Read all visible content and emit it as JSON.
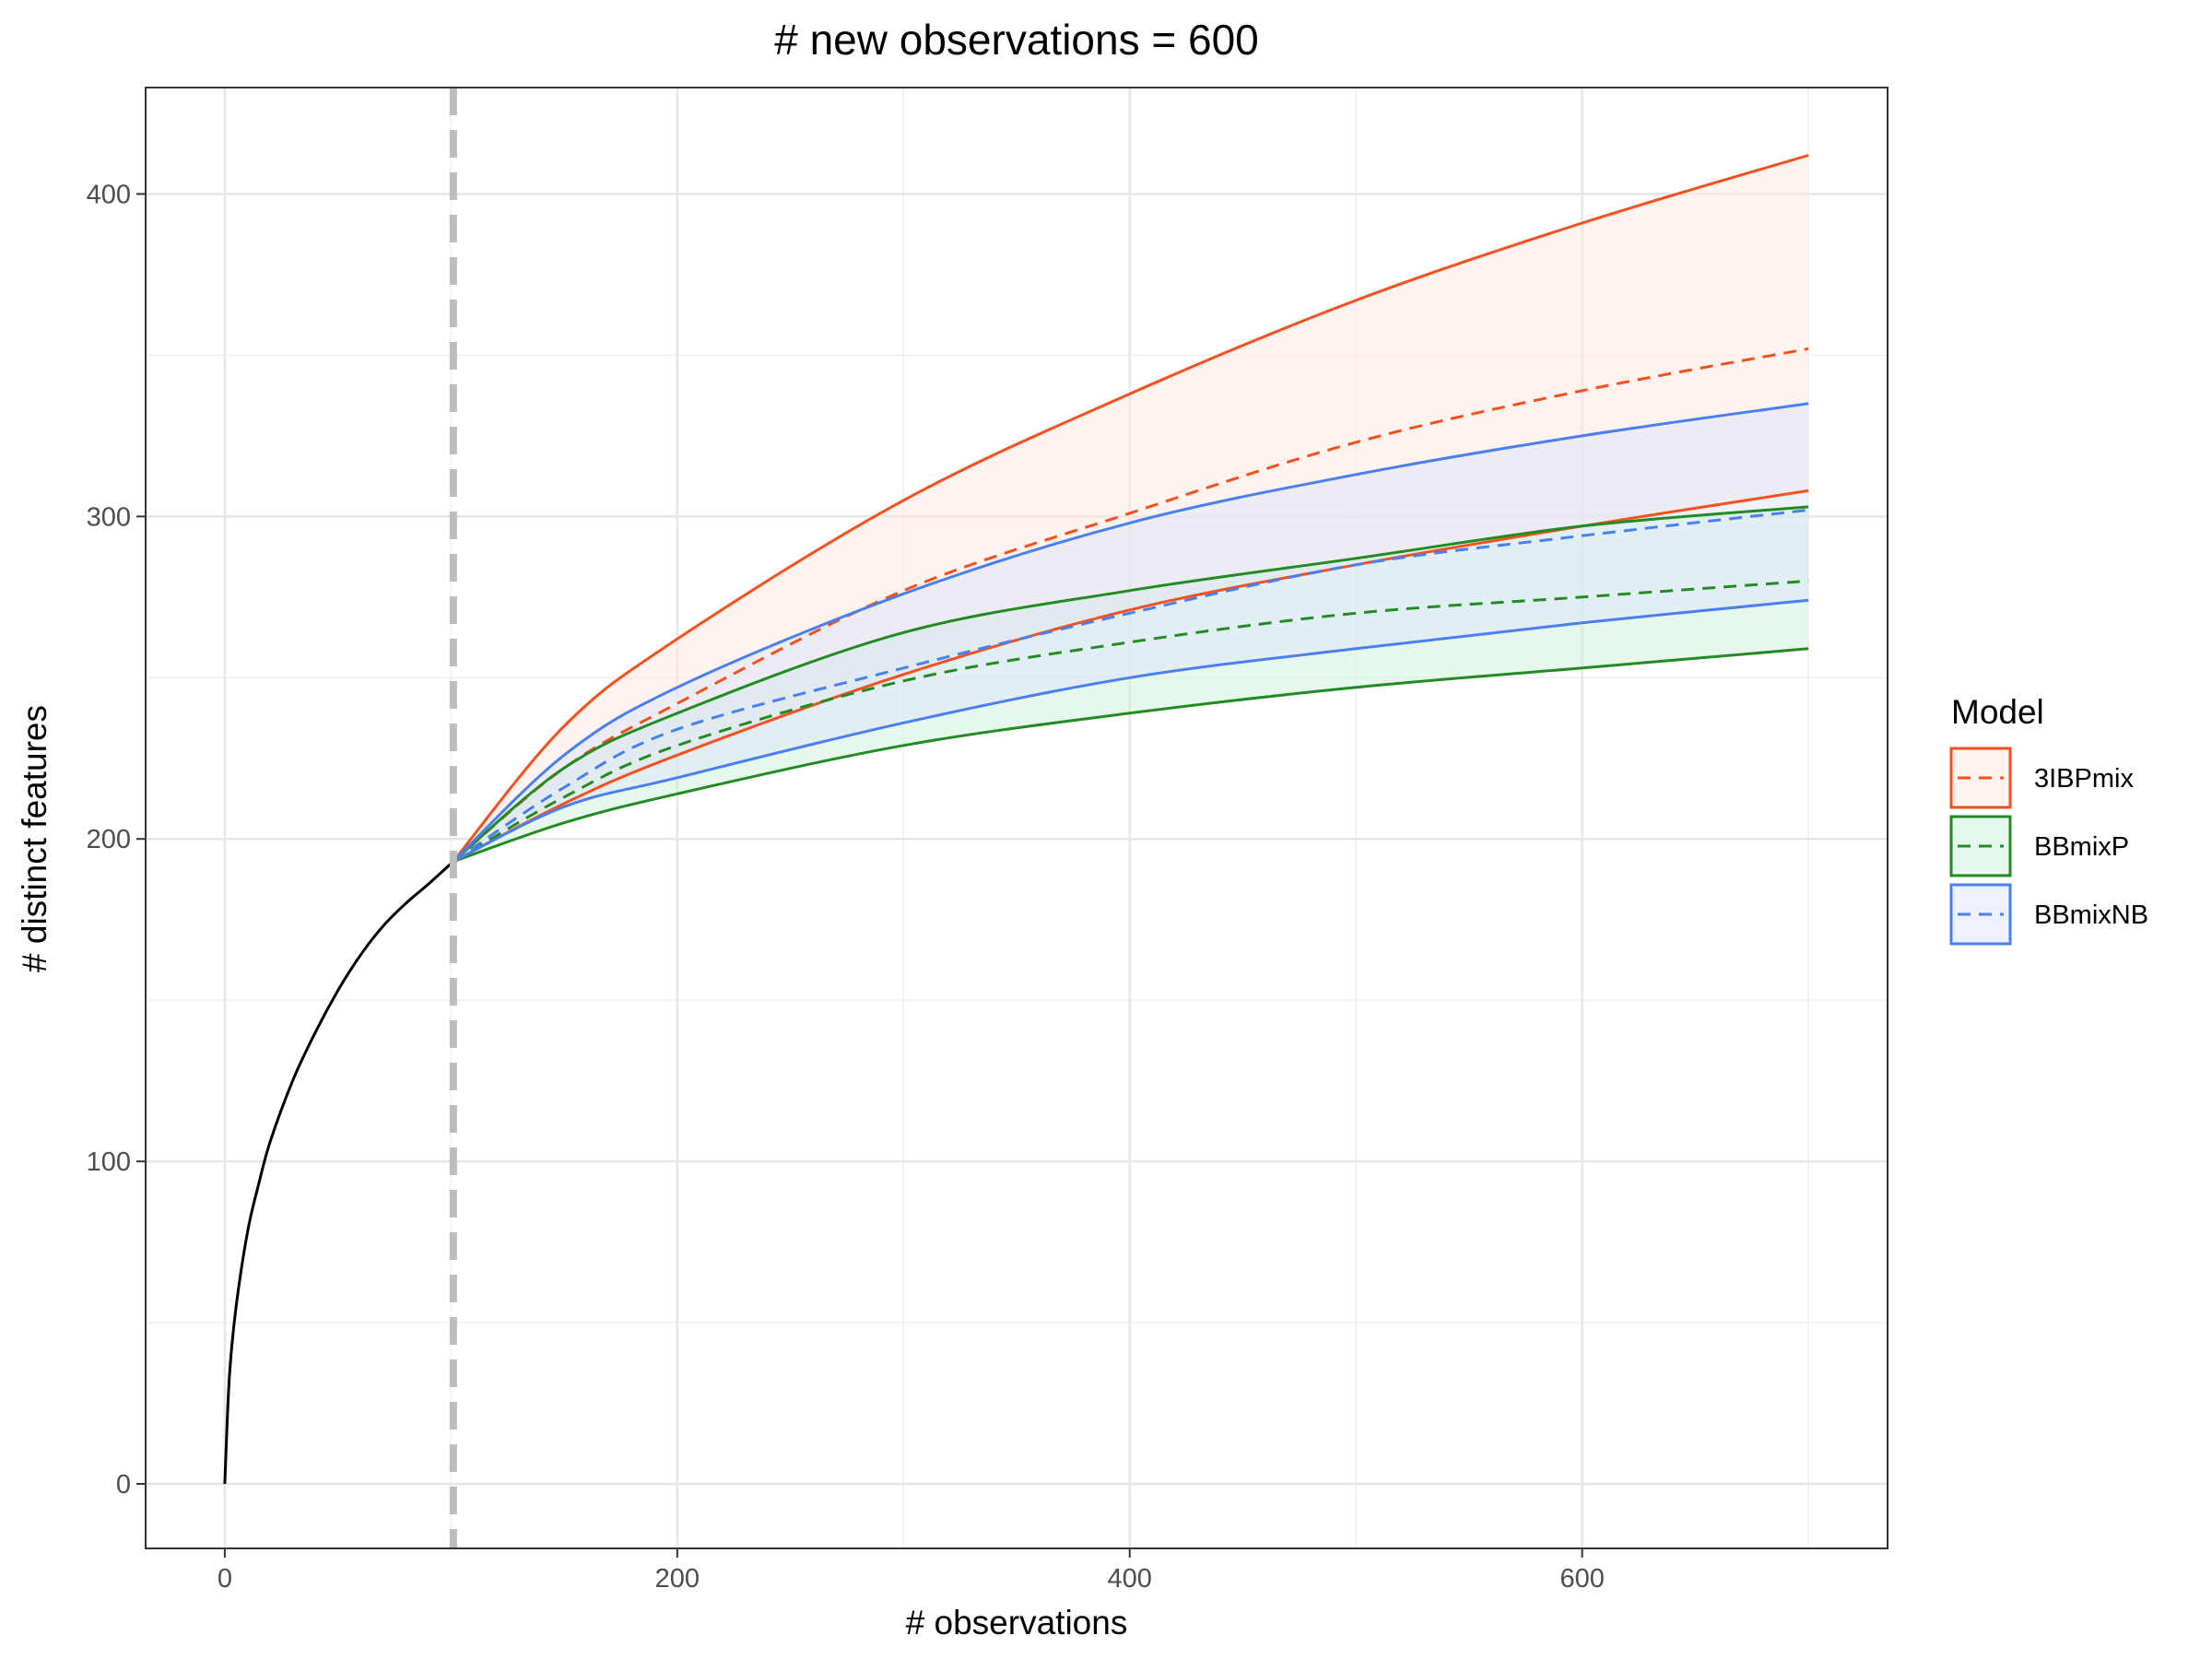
{
  "chart_data": {
    "type": "line",
    "title": "# new observations = 600",
    "xlabel": "# observations",
    "ylabel": "# distinct features",
    "xlim": [
      -35,
      735
    ],
    "ylim": [
      -20,
      433
    ],
    "x_ticks": [
      0,
      200,
      400,
      600
    ],
    "x_tick_labels": [
      "0",
      "200",
      "400",
      "600"
    ],
    "y_ticks": [
      0,
      100,
      200,
      300,
      400
    ],
    "y_tick_labels": [
      "0",
      "100",
      "200",
      "300",
      "400"
    ],
    "grid": true,
    "training_size_line": 101,
    "legend": {
      "title": "Model",
      "position": "right",
      "entries": [
        {
          "label": "3IBPmix",
          "color": "#F4511E"
        },
        {
          "label": "BBmixP",
          "color": "#228B22"
        },
        {
          "label": "BBmixNB",
          "color": "#4A7FEF"
        }
      ]
    },
    "observed": {
      "color": "#000000",
      "x": [
        0,
        2,
        5,
        10,
        15,
        20,
        30,
        40,
        50,
        60,
        70,
        80,
        90,
        101
      ],
      "y": [
        0,
        33,
        55,
        78,
        93,
        106,
        125,
        140,
        153,
        164,
        173,
        180,
        186,
        193
      ]
    },
    "series": [
      {
        "name": "3IBPmix",
        "color": "#F4511E",
        "fill": "#FFE5E0",
        "x": [
          101,
          150,
          200,
          300,
          400,
          500,
          600,
          700
        ],
        "lower": [
          193,
          211,
          226,
          251,
          271,
          285,
          297,
          308
        ],
        "mean": [
          193,
          222,
          242,
          277,
          301,
          323,
          339,
          352
        ],
        "upper": [
          193,
          235,
          262,
          305,
          338,
          367,
          391,
          412
        ]
      },
      {
        "name": "BBmixP",
        "color": "#228B22",
        "fill": "#CDEFD9",
        "x": [
          101,
          150,
          200,
          300,
          400,
          500,
          600,
          700
        ],
        "lower": [
          193,
          205,
          214,
          229,
          239,
          247,
          253,
          259
        ],
        "mean": [
          193,
          213,
          229,
          249,
          261,
          270,
          275,
          280
        ],
        "upper": [
          193,
          222,
          239,
          264,
          277,
          287,
          297,
          303
        ]
      },
      {
        "name": "BBmixNB",
        "color": "#4A7FEF",
        "fill": "#DBE6FA",
        "x": [
          101,
          150,
          200,
          300,
          400,
          500,
          600,
          700
        ],
        "lower": [
          193,
          210,
          219,
          236,
          250,
          259,
          267,
          274
        ],
        "mean": [
          193,
          216,
          234,
          253,
          270,
          285,
          294,
          302
        ],
        "upper": [
          193,
          226,
          247,
          276,
          298,
          313,
          325,
          335
        ]
      }
    ]
  }
}
